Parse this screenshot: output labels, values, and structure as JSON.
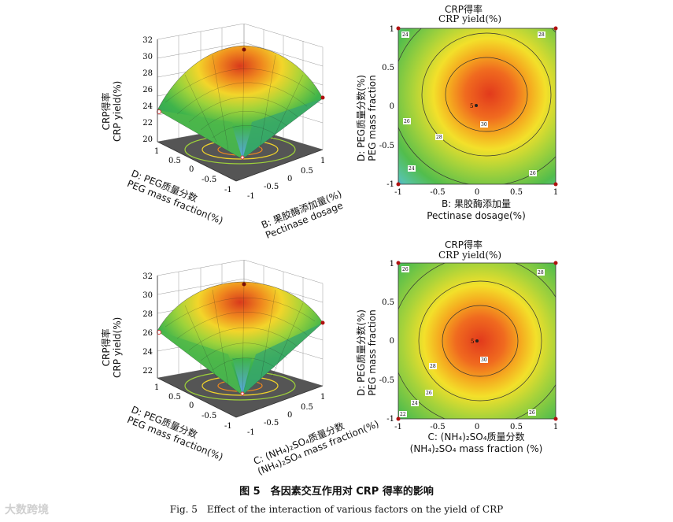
{
  "colors": {
    "red": "#e53a1e",
    "orange": "#f7a21b",
    "yellow": "#f6ea2c",
    "green": "#58c043",
    "blue": "#5aa7e8",
    "axis": "#333333",
    "floor": "#555555"
  },
  "panels": [
    {
      "id": "tl",
      "zlabel_cn": "CRP得率",
      "zlabel_en": "CRP yield(%)",
      "z_ticks": [
        "32",
        "30",
        "28",
        "26",
        "24",
        "22",
        "20"
      ],
      "left_axis_label": "D: PEG质量分数",
      "left_axis_label2": "PEG mass fraction(%)",
      "left_ticks": [
        "1",
        "0.5",
        "0",
        "-0.5",
        "-1"
      ],
      "right_axis_label": "B: 果胶酶添加量(%)",
      "right_axis_label2": "Pectinase dosage",
      "right_ticks": [
        "1",
        "0.5",
        "0",
        "-0.5",
        "-1"
      ]
    },
    {
      "id": "bl",
      "zlabel_cn": "CRP得率",
      "zlabel_en": "CRP yield(%)",
      "z_ticks": [
        "32",
        "30",
        "28",
        "26",
        "24",
        "22"
      ],
      "left_axis_label": "D: PEG质量分数",
      "left_axis_label2": "PEG mass fraction(%)",
      "left_ticks": [
        "1",
        "0.5",
        "0",
        "-0.5",
        "-1"
      ],
      "right_axis_label": "C: (NH₄)₂SO₄质量分数",
      "right_axis_label2": "(NH₄)₂SO₄ mass fraction(%)",
      "right_ticks": [
        "1",
        "0.5",
        "0",
        "-0.5",
        "-1"
      ]
    }
  ],
  "contours": [
    {
      "id": "tr",
      "title_cn": "CRP得率",
      "title_en": "CRP yield(%)",
      "ylabel1": "D: PEG质量分数(%)",
      "ylabel2": "PEG mass fraction",
      "xlabel1": "B: 果胶酶添加量",
      "xlabel2": "Pectinase dosage(%)",
      "x_ticks": [
        "-1",
        "-0.5",
        "0",
        "0.5",
        "1"
      ],
      "y_ticks": [
        "1",
        "0.5",
        "0",
        "-0.5",
        "-1"
      ],
      "center_label": "5",
      "contour_labels": [
        "30",
        "28",
        "26",
        "24",
        "24",
        "28",
        "26"
      ]
    },
    {
      "id": "br",
      "title_cn": "CRP得率",
      "title_en": "CRP yield(%)",
      "ylabel1": "D: PEG质量分数(%)",
      "ylabel2": "PEG mass fraction",
      "xlabel1": "C: (NH₄)₂SO₄质量分数",
      "xlabel2": "(NH₄)₂SO₄ mass fraction (%)",
      "x_ticks": [
        "-1",
        "-0.5",
        "0",
        "0.5",
        "1"
      ],
      "y_ticks": [
        "1",
        "0.5",
        "0",
        "-0.5",
        "-1"
      ],
      "center_label": "5",
      "contour_labels": [
        "30",
        "28",
        "26",
        "24",
        "22",
        "26",
        "28"
      ]
    }
  ],
  "caption": {
    "cn": "图 5　各因素交互作用对 CRP 得率的影响",
    "en": "Fig. 5　Effect of the interaction of various factors on the yield of CRP"
  },
  "watermark": "大数跨境"
}
